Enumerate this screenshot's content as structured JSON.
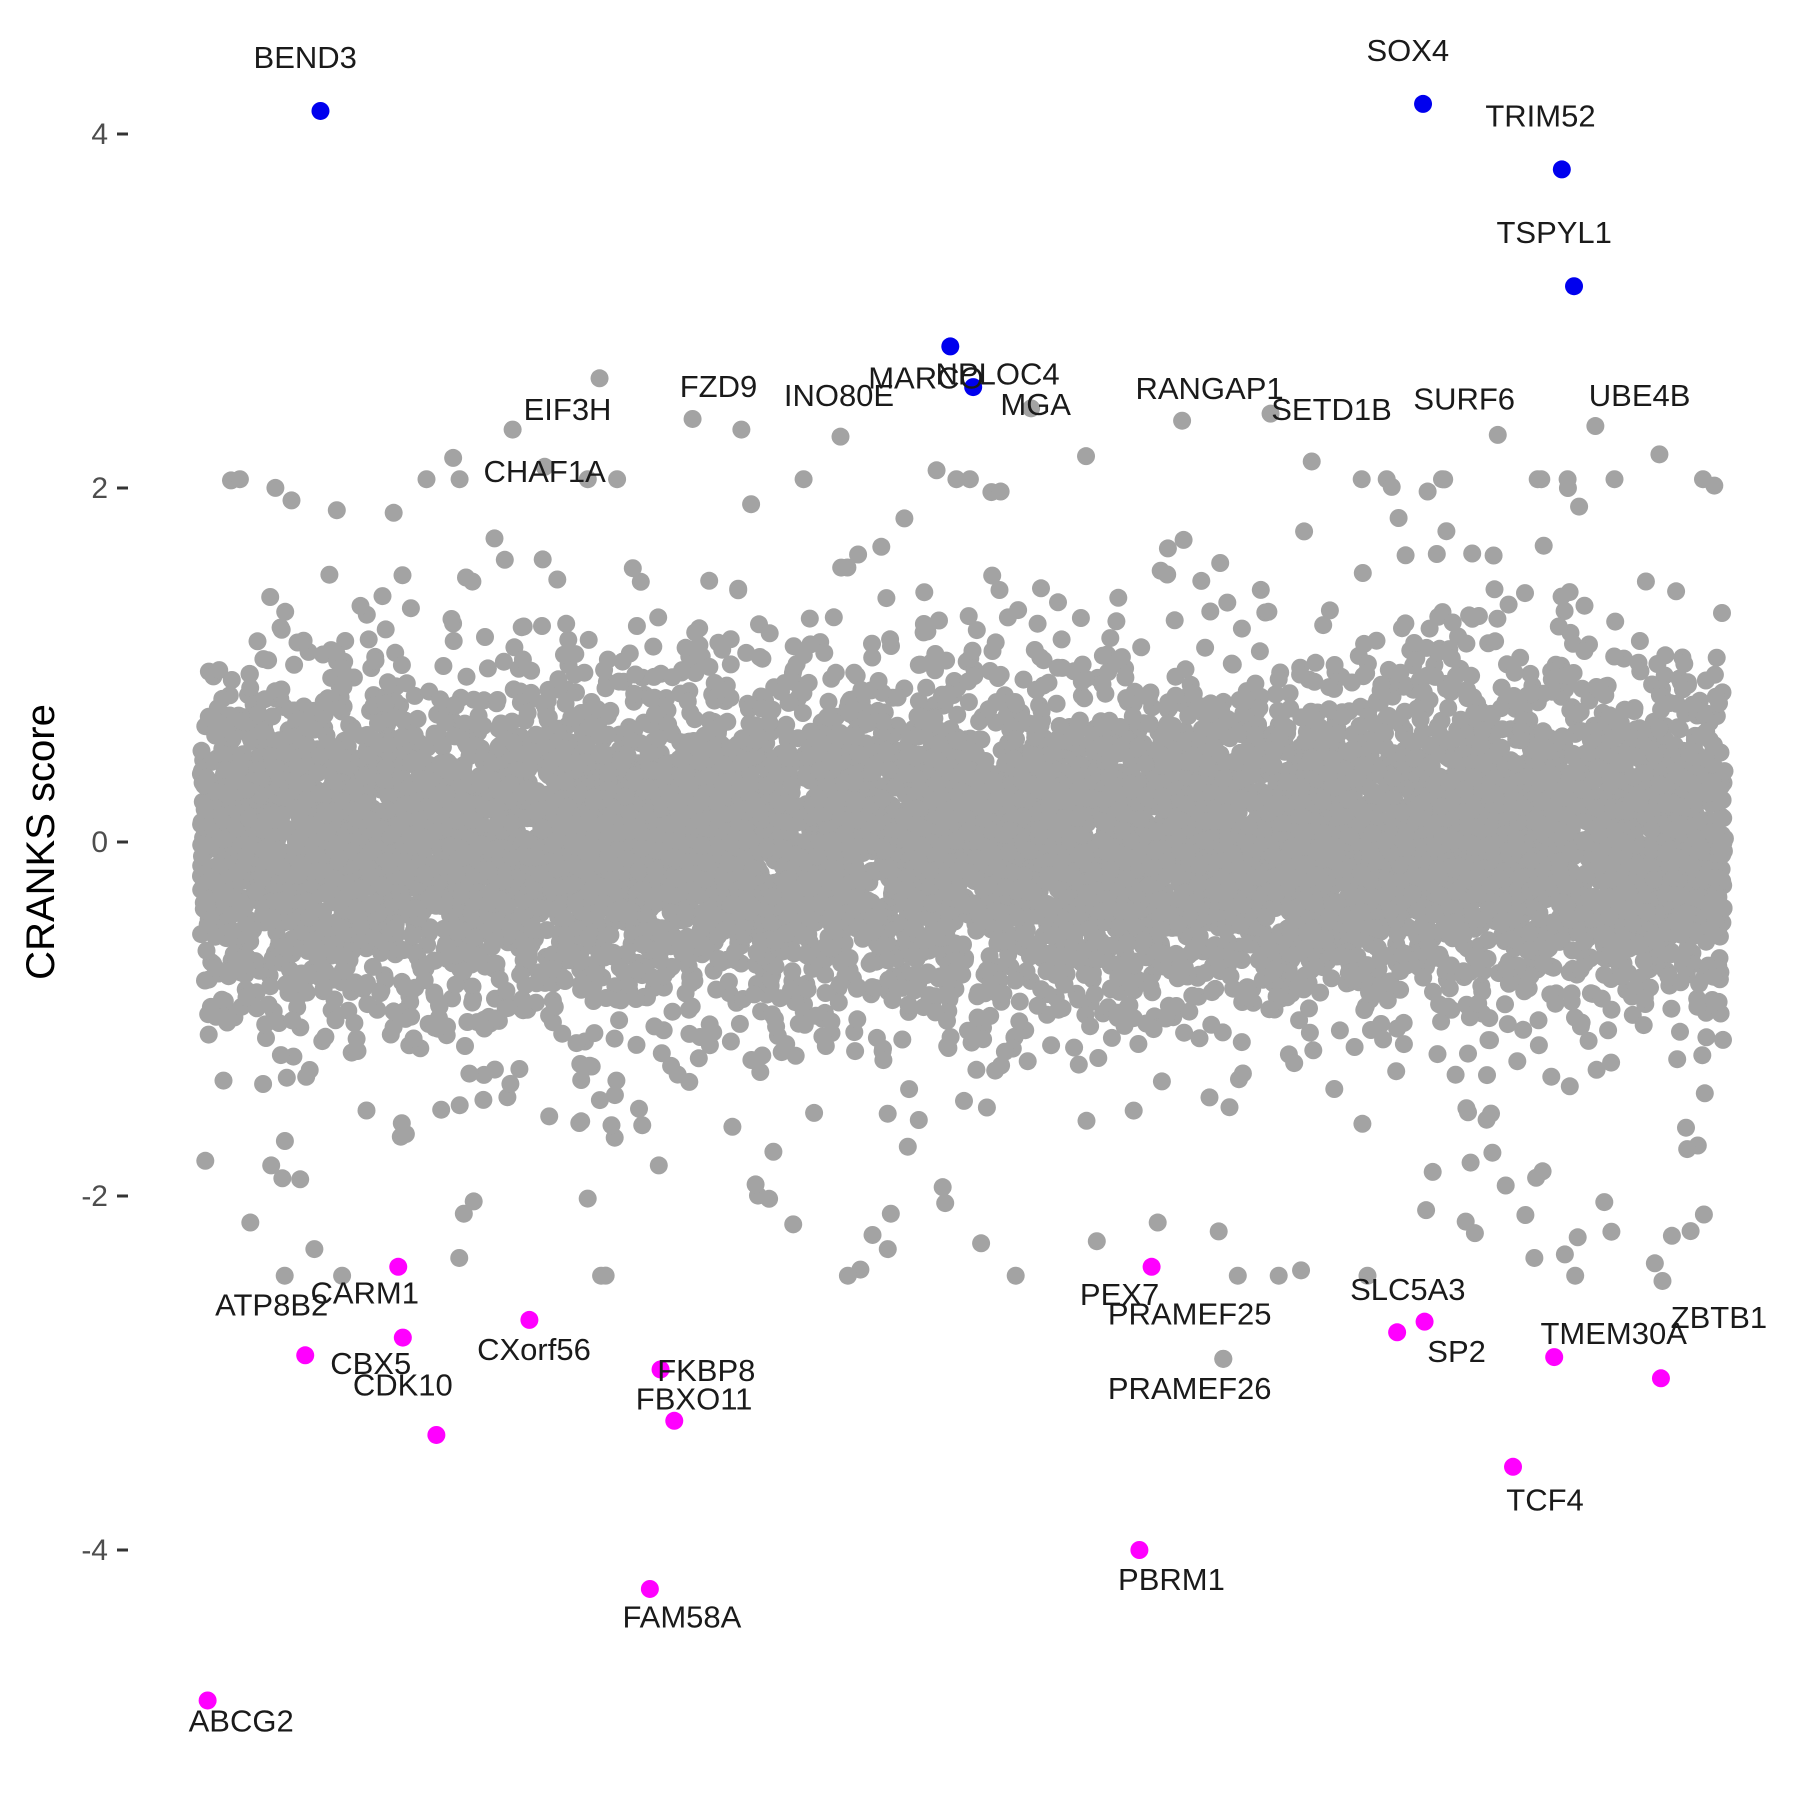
{
  "chart_data": {
    "type": "scatter",
    "title": "",
    "xlabel": "",
    "ylabel": "CRANKS score",
    "ylim": [
      -5.0,
      4.4
    ],
    "xlim": [
      0,
      100
    ],
    "yticks": [
      4,
      2,
      0,
      -2,
      -4
    ],
    "grid": false,
    "legend": "none",
    "colors": {
      "background_points": "#a3a3a3",
      "positive_hits": "#0000ee",
      "negative_hits": "#ff00ff"
    },
    "background_cloud": {
      "description_seed": 7,
      "core_count": 9000,
      "x_range": [
        0,
        100
      ],
      "core_sd": 0.45
    },
    "background_highlights": [
      {
        "x": 26.2,
        "y": 2.62
      },
      {
        "x": 32.3,
        "y": 2.39
      },
      {
        "x": 20.5,
        "y": 2.33
      },
      {
        "x": 54.5,
        "y": 2.45
      },
      {
        "x": 64.4,
        "y": 2.38
      },
      {
        "x": 70.2,
        "y": 2.42
      },
      {
        "x": 85.1,
        "y": 2.3
      },
      {
        "x": 91.5,
        "y": 2.35
      },
      {
        "x": 72.9,
        "y": 2.15
      },
      {
        "x": 16.6,
        "y": 2.17
      },
      {
        "x": 22.6,
        "y": 2.12
      },
      {
        "x": 42.0,
        "y": 2.29
      },
      {
        "x": 48.3,
        "y": 2.1
      },
      {
        "x": 35.5,
        "y": 2.33
      },
      {
        "x": 58.1,
        "y": 2.18
      },
      {
        "x": 80.5,
        "y": 1.98
      },
      {
        "x": 12.7,
        "y": 1.86
      },
      {
        "x": 95.7,
        "y": 2.19
      },
      {
        "x": 52.5,
        "y": 1.98
      },
      {
        "x": 6.0,
        "y": 1.93
      },
      {
        "x": 89.7,
        "y": 2.0
      },
      {
        "x": 17.3,
        "y": -2.1
      },
      {
        "x": 22.9,
        "y": -1.55
      },
      {
        "x": 29.0,
        "y": -1.6
      },
      {
        "x": 45.3,
        "y": -2.1
      },
      {
        "x": 45.1,
        "y": -2.3
      },
      {
        "x": 48.7,
        "y": -1.95
      },
      {
        "x": 62.8,
        "y": -2.15
      },
      {
        "x": 66.8,
        "y": -2.2
      },
      {
        "x": 72.2,
        "y": -2.42
      },
      {
        "x": 80.4,
        "y": -2.08
      },
      {
        "x": 87.5,
        "y": -2.35
      },
      {
        "x": 89.5,
        "y": -2.33
      },
      {
        "x": 95.4,
        "y": -2.38
      },
      {
        "x": 95.9,
        "y": -2.48
      },
      {
        "x": 83.6,
        "y": -2.21
      },
      {
        "x": 3.3,
        "y": -2.15
      },
      {
        "x": 7.5,
        "y": -2.3
      },
      {
        "x": 17.0,
        "y": -2.35
      },
      {
        "x": 26.6,
        "y": -2.45
      },
      {
        "x": 44.1,
        "y": -2.22
      },
      {
        "x": 38.9,
        "y": -2.16
      },
      {
        "x": 37.6,
        "y": -1.75
      },
      {
        "x": 13.5,
        "y": -1.65
      },
      {
        "x": 5.4,
        "y": -1.9
      }
    ],
    "points": [
      {
        "gene": "BEND3",
        "x": 7.9,
        "y": 4.13,
        "group": "positive",
        "label_dx": -1.0,
        "label_dy": 0.3
      },
      {
        "gene": "SOX4",
        "x": 80.2,
        "y": 4.17,
        "group": "positive",
        "label_dx": -1.0,
        "label_dy": 0.3
      },
      {
        "gene": "TRIM52",
        "x": 89.3,
        "y": 3.8,
        "group": "positive",
        "label_dx": -1.4,
        "label_dy": 0.3
      },
      {
        "gene": "TSPYL1",
        "x": 90.1,
        "y": 3.14,
        "group": "positive",
        "label_dx": -1.3,
        "label_dy": 0.3
      },
      {
        "gene": "MARCO",
        "x": 49.2,
        "y": 2.8,
        "group": "positive",
        "label_dx": -1.6,
        "label_dy": -0.18
      },
      {
        "gene": "MGA",
        "x": 50.7,
        "y": 2.57,
        "group": "positive",
        "label_dx": 4.1,
        "label_dy": -0.1
      },
      {
        "gene": "ABCG2",
        "x": 0.5,
        "y": -4.85,
        "group": "negative",
        "label_dx": 2.2,
        "label_dy": -0.12
      },
      {
        "gene": "ATP8B2",
        "x": 6.9,
        "y": -2.9,
        "group": "negative",
        "label_dx": -2.2,
        "label_dy": 0.28
      },
      {
        "gene": "CARM1",
        "x": 13.0,
        "y": -2.4,
        "group": "negative",
        "label_dx": -2.2,
        "label_dy": -0.15
      },
      {
        "gene": "CBX5",
        "x": 13.3,
        "y": -2.8,
        "group": "negative",
        "label_dx": -2.1,
        "label_dy": -0.15
      },
      {
        "gene": "CDK10",
        "x": 15.5,
        "y": -3.35,
        "group": "negative",
        "label_dx": -2.2,
        "label_dy": 0.28
      },
      {
        "gene": "CXorf56",
        "x": 21.6,
        "y": -2.7,
        "group": "negative",
        "label_dx": 0.3,
        "label_dy": -0.17
      },
      {
        "gene": "FBXO11",
        "x": 30.2,
        "y": -2.98,
        "group": "negative",
        "label_dx": 2.2,
        "label_dy": -0.17
      },
      {
        "gene": "FKBP8",
        "x": 31.1,
        "y": -3.27,
        "group": "negative",
        "label_dx": 2.1,
        "label_dy": 0.28
      },
      {
        "gene": "FAM58A",
        "x": 29.5,
        "y": -4.22,
        "group": "negative",
        "label_dx": 2.1,
        "label_dy": -0.16
      },
      {
        "gene": "PEX7",
        "x": 62.4,
        "y": -2.4,
        "group": "negative",
        "label_dx": -2.1,
        "label_dy": -0.16
      },
      {
        "gene": "PRAMEF26",
        "x": 67.1,
        "y": -2.92,
        "group": "background",
        "label_dx": -2.2,
        "label_dy": -0.17
      },
      {
        "gene": "PRAMEF25",
        "x": 67.1,
        "y": -2.92,
        "group": "background",
        "label_dx": -2.2,
        "label_dy": 0.25
      },
      {
        "gene": "PBRM1",
        "x": 61.6,
        "y": -4.0,
        "group": "negative",
        "label_dx": 2.1,
        "label_dy": -0.17
      },
      {
        "gene": "SP2",
        "x": 80.3,
        "y": -2.71,
        "group": "negative",
        "label_dx": 2.1,
        "label_dy": -0.17
      },
      {
        "gene": "SLC5A3",
        "x": 78.5,
        "y": -2.77,
        "group": "negative",
        "label_dx": 0.7,
        "label_dy": 0.24
      },
      {
        "gene": "TMEM30A",
        "x": 88.8,
        "y": -2.91,
        "group": "negative",
        "label_dx": 3.9,
        "label_dy": 0.13
      },
      {
        "gene": "TCF4",
        "x": 86.1,
        "y": -3.53,
        "group": "negative",
        "label_dx": 2.1,
        "label_dy": -0.19
      },
      {
        "gene": "ZBTB1",
        "x": 95.8,
        "y": -3.03,
        "group": "negative",
        "label_dx": 3.8,
        "label_dy": 0.34
      }
    ],
    "text_only_labels": [
      {
        "gene": "EIF3H",
        "x": 26.2,
        "y": 2.62,
        "label_dx": -2.1,
        "label_dy": -0.18
      },
      {
        "gene": "CHAF1A",
        "x": 16.6,
        "y": 2.17,
        "label_dx": 6.0,
        "label_dy": -0.08
      },
      {
        "gene": "FZD9",
        "x": 32.3,
        "y": 2.39,
        "label_dx": 1.7,
        "label_dy": 0.18
      },
      {
        "gene": "INO80E",
        "x": 42.0,
        "y": 2.29,
        "label_dx": -0.1,
        "label_dy": 0.23
      },
      {
        "gene": "NPLOC4",
        "x": 54.5,
        "y": 2.45,
        "label_dx": -2.2,
        "label_dy": 0.19
      },
      {
        "gene": "SETD1B",
        "x": 76.4,
        "y": 2.62,
        "label_dx": -2.2,
        "label_dy": -0.18
      },
      {
        "gene": "RANGAP1",
        "x": 64.4,
        "y": 2.38,
        "label_dx": 1.8,
        "label_dy": 0.18
      },
      {
        "gene": "SURF6",
        "x": 85.1,
        "y": 2.3,
        "label_dx": -2.2,
        "label_dy": 0.2
      },
      {
        "gene": "UBE4B",
        "x": 91.5,
        "y": 2.35,
        "label_dx": 2.9,
        "label_dy": 0.17
      }
    ]
  }
}
